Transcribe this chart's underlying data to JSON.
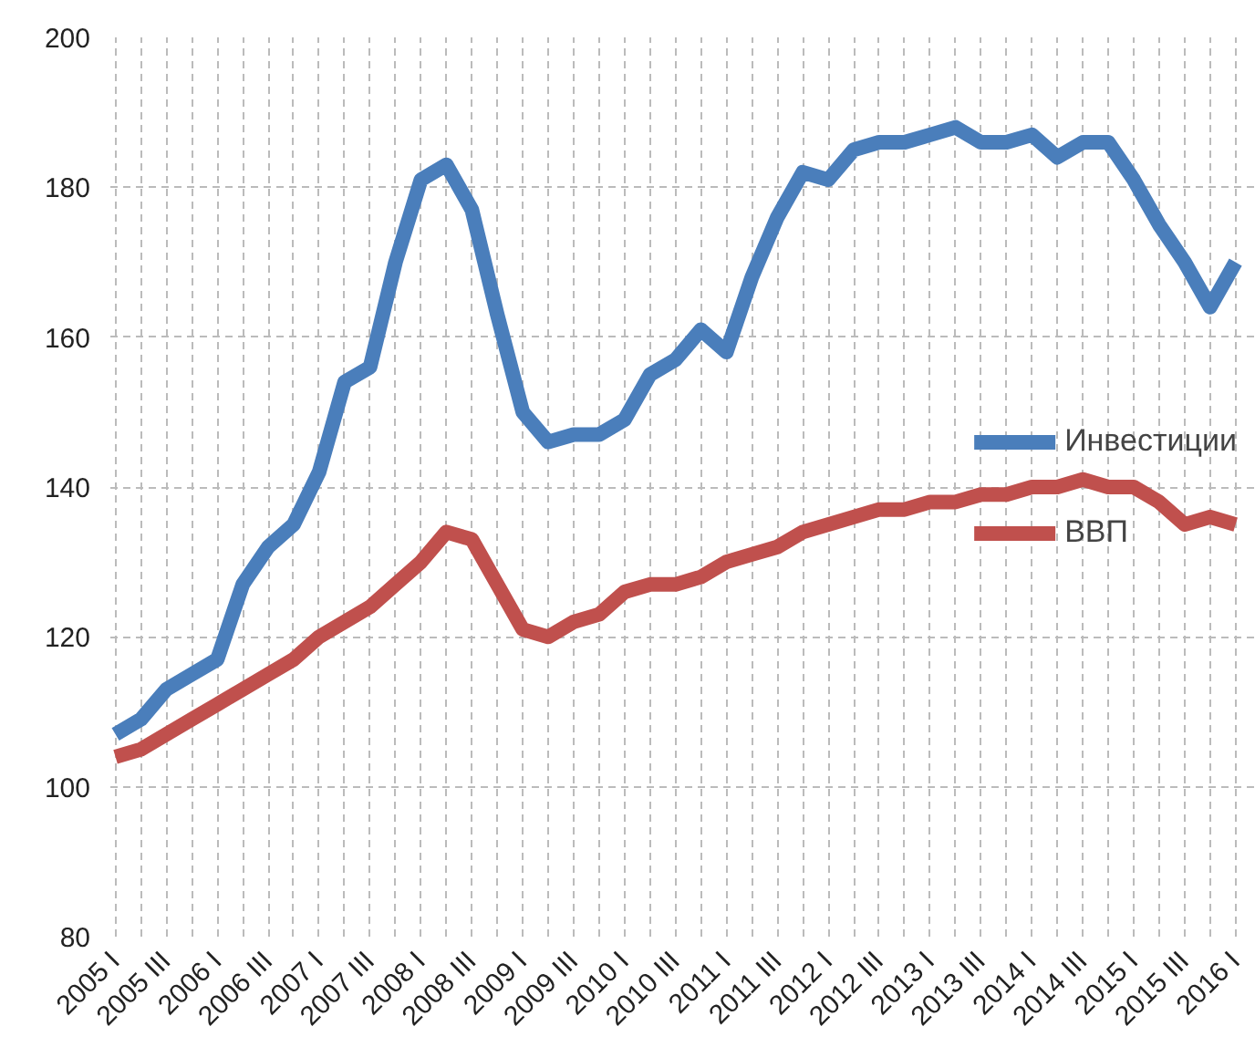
{
  "chart_data": {
    "type": "line",
    "categories": [
      "2005 I",
      null,
      "2005 III",
      null,
      "2006 I",
      null,
      "2006 III",
      null,
      "2007 I",
      null,
      "2007 III",
      null,
      "2008 I",
      null,
      "2008 III",
      null,
      "2009 I",
      null,
      "2009 III",
      null,
      "2010 I",
      null,
      "2010 III",
      null,
      "2011 I",
      null,
      "2011 III",
      null,
      "2012 I",
      null,
      "2012 III",
      null,
      "2013 I",
      null,
      "2013 III",
      null,
      "2014 I",
      null,
      "2014 III",
      null,
      "2015 I",
      null,
      "2015 III",
      null,
      "2016 I"
    ],
    "series": [
      {
        "name": "Инвестиции",
        "color": "#4a7ebb",
        "values": [
          107,
          109,
          113,
          115,
          117,
          127,
          132,
          135,
          142,
          154,
          156,
          170,
          181,
          183,
          177,
          163,
          150,
          146,
          147,
          147,
          149,
          155,
          157,
          161,
          158,
          168,
          176,
          182,
          181,
          185,
          186,
          186,
          187,
          188,
          186,
          186,
          187,
          184,
          186,
          186,
          181,
          175,
          170,
          164,
          170
        ]
      },
      {
        "name": "ВВП",
        "color": "#c0504d",
        "values": [
          104,
          105,
          107,
          109,
          111,
          113,
          115,
          117,
          120,
          122,
          124,
          127,
          130,
          134,
          133,
          127,
          121,
          120,
          122,
          123,
          126,
          127,
          127,
          128,
          130,
          131,
          132,
          134,
          135,
          136,
          137,
          137,
          138,
          138,
          139,
          139,
          140,
          140,
          141,
          140,
          140,
          138,
          135,
          136,
          135
        ]
      }
    ],
    "ylim": [
      80,
      200
    ],
    "yticks": [
      80,
      100,
      120,
      140,
      160,
      180,
      200
    ],
    "grid": true,
    "legend": "right",
    "line_style": "solid",
    "marker": "none"
  }
}
